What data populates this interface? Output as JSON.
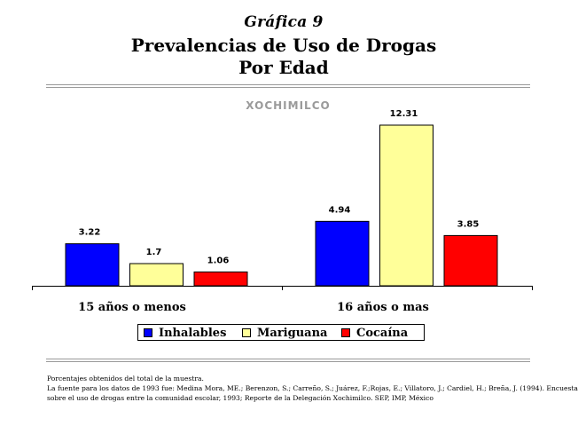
{
  "header": {
    "graph_label": "Gráfica 9",
    "title_line1": "Prevalencias de Uso de Drogas",
    "title_line2": "Por Edad"
  },
  "colors": {
    "Inhalables": "#0000ff",
    "Mariguana": "#ffff99",
    "Cocaína": "#ff0000"
  },
  "chart_data": {
    "type": "bar",
    "title": "XOCHIMILCO",
    "categories": [
      "15 años o menos",
      "16 años o mas"
    ],
    "series": [
      {
        "name": "Inhalables",
        "values": [
          3.22,
          4.94
        ]
      },
      {
        "name": "Mariguana",
        "values": [
          1.7,
          12.31
        ]
      },
      {
        "name": "Cocaína",
        "values": [
          1.06,
          3.85
        ]
      }
    ],
    "data_labels": [
      [
        "3.22",
        "4.94"
      ],
      [
        "1.7",
        "12.31"
      ],
      [
        "1.06",
        "3.85"
      ]
    ],
    "xlabel": "",
    "ylabel": "",
    "ylim": [
      0,
      12.31
    ],
    "grid": false,
    "legend_position": "bottom"
  },
  "footnote": {
    "line1": "Porcentajes obtenidos del total de la muestra.",
    "line2": "La fuente para los datos de 1993 fue: Medina Mora, ME.; Berenzon, S.; Carreño, S.; Juárez, F.;Rojas, E.; Villatoro, J.; Cardiel, H.; Breña, J. (1994). Encuesta",
    "line3": "sobre el uso de drogas entre la comunidad escolar, 1993; Reporte de la Delegación Xochimilco. SEP, IMP, México"
  }
}
